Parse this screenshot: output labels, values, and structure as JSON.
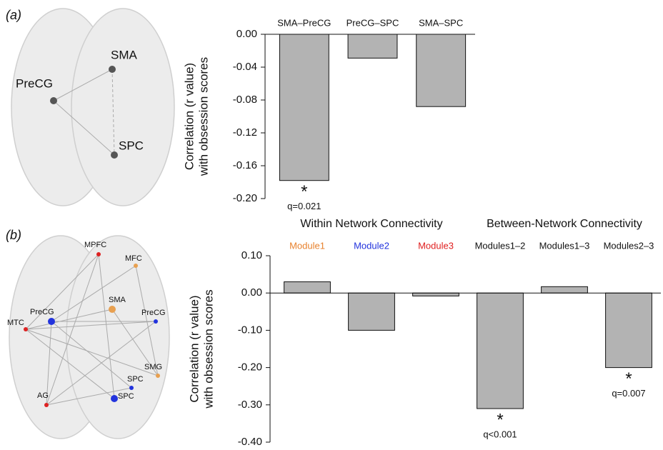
{
  "figure": {
    "panels": [
      {
        "label": "(a)",
        "brain_nodes": [
          "SMA",
          "PreCG",
          "SPC"
        ]
      },
      {
        "label": "(b)",
        "brain_nodes": [
          "MPFC",
          "MFC",
          "SMA",
          "PreCG",
          "PreCG",
          "MTC",
          "SMG",
          "SPC",
          "SPC",
          "AG"
        ]
      }
    ]
  },
  "chart_data": [
    {
      "type": "bar",
      "ylabel": [
        "Correlation (r value)",
        "with obsession scores"
      ],
      "categories": [
        "SMA–PreCG",
        "PreCG–SPC",
        "SMA–SPC"
      ],
      "values": [
        -0.178,
        -0.029,
        -0.088
      ],
      "color": "#b3b3b3",
      "stars": [
        "*",
        null,
        null
      ],
      "significance": [
        "q=0.021",
        null,
        null
      ],
      "ylim": [
        -0.2,
        0
      ],
      "yticks": [
        {
          "value": 0,
          "label": "0.00"
        },
        {
          "value": -0.04,
          "label": "-0.04"
        },
        {
          "value": -0.08,
          "label": "-0.08"
        },
        {
          "value": -0.12,
          "label": "-0.12"
        },
        {
          "value": -0.16,
          "label": "-0.16"
        },
        {
          "value": -0.2,
          "label": "-0.20"
        }
      ]
    },
    {
      "type": "bar",
      "ylabel": [
        "Correlation (r value)",
        "with obsession scores"
      ],
      "groups": [
        "Within Network Connectivity",
        "Between-Network Connectivity"
      ],
      "categories": [
        "Module1",
        "Module2",
        "Module3",
        "Modules1–2",
        "Modules1–3",
        "Modules2–3"
      ],
      "category_colors": [
        "#e8822e",
        "#2233dd",
        "#e02020",
        "#111111",
        "#111111",
        "#111111"
      ],
      "values": [
        0.03,
        -0.1,
        -0.008,
        -0.31,
        0.017,
        -0.2
      ],
      "color": "#b3b3b3",
      "stars": [
        null,
        null,
        null,
        "*",
        null,
        "*"
      ],
      "significance": [
        null,
        null,
        null,
        "q<0.001",
        null,
        "q=0.007"
      ],
      "ylim": [
        -0.4,
        0.1
      ],
      "yticks": [
        {
          "value": 0.1,
          "label": "0.10"
        },
        {
          "value": 0,
          "label": "0.00"
        },
        {
          "value": -0.1,
          "label": "-0.10"
        },
        {
          "value": -0.2,
          "label": "-0.20"
        },
        {
          "value": -0.3,
          "label": "-0.30"
        },
        {
          "value": -0.4,
          "label": "-0.40"
        }
      ]
    }
  ]
}
